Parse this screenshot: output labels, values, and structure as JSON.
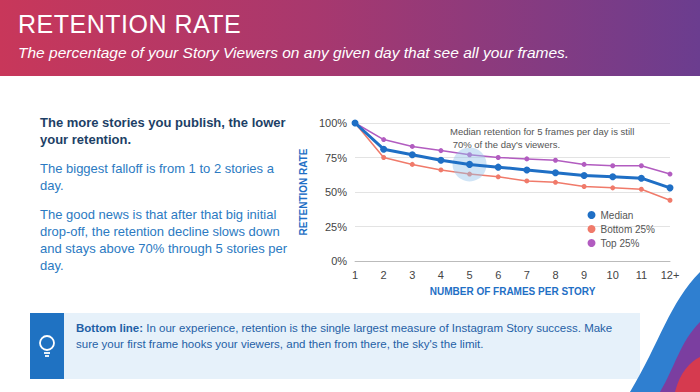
{
  "header": {
    "title": "RETENTION RATE",
    "subtitle": "The percentage of your Story Viewers on any given day that see all your frames."
  },
  "text": {
    "heading": "The more stories you publish, the lower your retention.",
    "paragraphs": [
      "The biggest falloff is from 1 to 2 stories a day.",
      "The good news is that after that big initial drop-off, the retention decline slows down and stays above 70% through 5 stories per day."
    ]
  },
  "bottom_line": {
    "label": "Bottom line:",
    "text": "In our experience, retention is the single largest measure of Instagram Story success. Make sure your first frame hooks your viewers, and then from there, the sky's the limit."
  },
  "chart_data": {
    "type": "line",
    "x_label": "NUMBER OF FRAMES PER STORY",
    "y_label": "RETENTION RATE",
    "annotation": "Median retention for 5 frames per day is still 70% of the day's viewers.",
    "categories": [
      "1",
      "2",
      "3",
      "4",
      "5",
      "6",
      "7",
      "8",
      "9",
      "10",
      "11",
      "12+"
    ],
    "series": [
      {
        "name": "Median",
        "color": "#1f6fc5",
        "marker": "circle",
        "values": [
          100,
          81,
          77,
          73,
          70,
          68,
          66,
          64,
          62,
          61,
          60,
          53
        ]
      },
      {
        "name": "Bottom 25%",
        "color": "#f07a6a",
        "marker": "circle",
        "values": [
          100,
          75,
          70,
          66,
          63,
          61,
          58,
          57,
          54,
          53,
          52,
          44
        ]
      },
      {
        "name": "Top 25%",
        "color": "#b25cc0",
        "marker": "circle",
        "values": [
          100,
          88,
          83,
          80,
          77,
          75,
          74,
          73,
          70,
          69,
          69,
          63
        ]
      }
    ],
    "ylim": [
      0,
      100
    ],
    "yticks": [
      {
        "value": 0,
        "label": "0%"
      },
      {
        "value": 25,
        "label": "25%"
      },
      {
        "value": 50,
        "label": "50%"
      },
      {
        "value": 75,
        "label": "75%"
      },
      {
        "value": 100,
        "label": "100%"
      }
    ],
    "grid": true,
    "legend": "lower right"
  }
}
